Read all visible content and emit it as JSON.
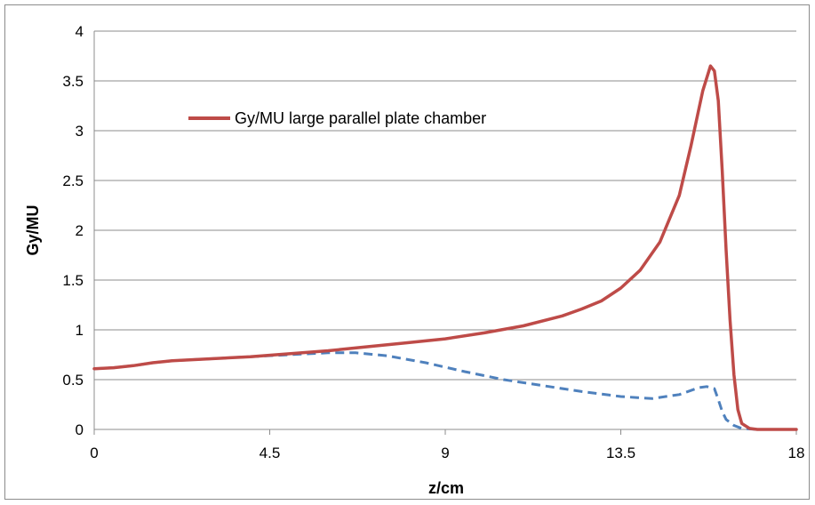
{
  "chart_data": {
    "type": "line",
    "title": "",
    "xlabel": "z/cm",
    "ylabel": "Gy/MU",
    "xlim": [
      0,
      18
    ],
    "ylim": [
      0,
      4
    ],
    "xticks": [
      "0",
      "4.5",
      "9",
      "13.5",
      "18"
    ],
    "yticks": [
      "0",
      "0.5",
      "1",
      "1.5",
      "2",
      "2.5",
      "3",
      "3.5",
      "4"
    ],
    "grid": "horizontal",
    "legend_position": "upper-left inside plot",
    "series": [
      {
        "name": "Gy/MU large parallel plate chamber",
        "color": "#be4b48",
        "style": "solid",
        "x": [
          0,
          0.5,
          1,
          1.5,
          2,
          3,
          4,
          5,
          6,
          7,
          8,
          9,
          10,
          11,
          12,
          12.5,
          13,
          13.5,
          14,
          14.5,
          15,
          15.3,
          15.6,
          15.8,
          15.9,
          16.0,
          16.1,
          16.2,
          16.3,
          16.4,
          16.5,
          16.6,
          16.8,
          17,
          17.5,
          18
        ],
        "y": [
          0.61,
          0.62,
          0.64,
          0.67,
          0.69,
          0.71,
          0.73,
          0.76,
          0.79,
          0.83,
          0.87,
          0.91,
          0.97,
          1.04,
          1.14,
          1.21,
          1.29,
          1.42,
          1.6,
          1.88,
          2.35,
          2.85,
          3.4,
          3.65,
          3.6,
          3.3,
          2.6,
          1.8,
          1.1,
          0.55,
          0.2,
          0.06,
          0.01,
          0,
          0,
          0
        ]
      },
      {
        "color": "#4f81bd",
        "style": "dashed",
        "x": [
          0,
          0.5,
          1,
          1.5,
          2,
          3,
          4,
          5,
          6,
          6.7,
          7.5,
          8.5,
          9.5,
          10.5,
          11.5,
          12.5,
          13.5,
          14.3,
          15,
          15.5,
          15.7,
          15.9,
          16.0,
          16.1,
          16.2,
          16.4,
          16.6,
          17,
          18
        ],
        "y": [
          0.61,
          0.62,
          0.64,
          0.67,
          0.69,
          0.71,
          0.73,
          0.75,
          0.77,
          0.77,
          0.74,
          0.67,
          0.58,
          0.5,
          0.44,
          0.38,
          0.33,
          0.31,
          0.35,
          0.42,
          0.43,
          0.41,
          0.3,
          0.18,
          0.1,
          0.04,
          0.01,
          0,
          0
        ]
      }
    ]
  }
}
